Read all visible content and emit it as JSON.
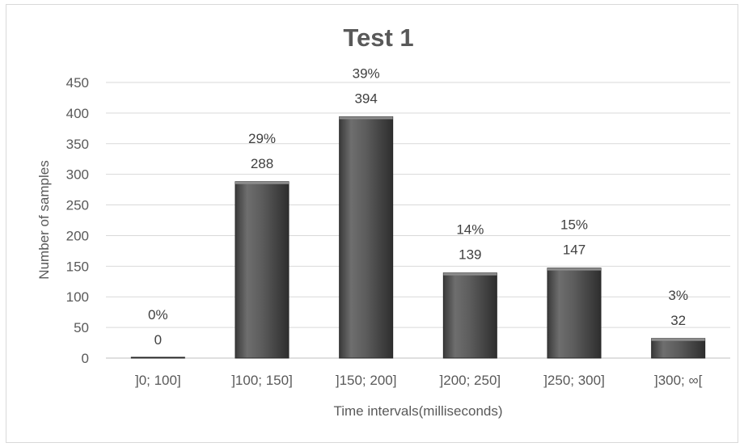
{
  "chart_data": {
    "type": "bar",
    "title": "Test 1",
    "xlabel": "Time intervals(milliseconds)",
    "ylabel": "Number of samples",
    "categories": [
      "]0; 100]",
      "]100; 150]",
      "]150; 200]",
      "]200; 250]",
      "]250; 300]",
      "]300; ∞["
    ],
    "values": [
      0,
      288,
      394,
      139,
      147,
      32
    ],
    "percent_labels": [
      "0%",
      "29%",
      "39%",
      "14%",
      "15%",
      "3%"
    ],
    "ylim": [
      0,
      450
    ],
    "yticks": [
      0,
      50,
      100,
      150,
      200,
      250,
      300,
      350,
      400,
      450
    ],
    "grid": true,
    "bar_color": "#595959"
  }
}
